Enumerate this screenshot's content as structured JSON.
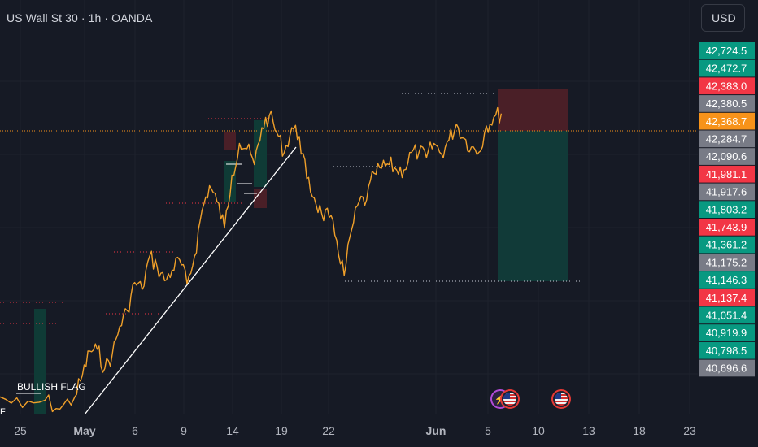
{
  "header": {
    "title": "US Wall St 30 · 1h · OANDA",
    "currency_label": "USD"
  },
  "colors": {
    "background": "#161a25",
    "candle": "#f0a02a",
    "grey_label": "#787b86",
    "green_label": "#089981",
    "red_label": "#f23645",
    "orange_label": "#f7931a",
    "trendline": "#ffffff",
    "stop_zone": "#4a1f27",
    "target_zone": "#113a38"
  },
  "chart_data": {
    "type": "line",
    "instrument": "US Wall St 30",
    "interval": "1h",
    "source": "OANDA",
    "ylim": [
      40650,
      42800
    ],
    "x_tick_labels": [
      "25",
      "May",
      "6",
      "9",
      "14",
      "19",
      "22",
      "Jun",
      "5",
      "10",
      "13",
      "18",
      "23"
    ],
    "price_labels": [
      {
        "value": "42,724.5",
        "color": "green"
      },
      {
        "value": "42,472.7",
        "color": "green"
      },
      {
        "value": "42,383.0",
        "color": "red"
      },
      {
        "value": "42,380.5",
        "color": "grey"
      },
      {
        "value": "42,368.7",
        "color": "orange"
      },
      {
        "value": "42,284.7",
        "color": "grey"
      },
      {
        "value": "42,090.6",
        "color": "grey"
      },
      {
        "value": "41,981.1",
        "color": "red"
      },
      {
        "value": "41,917.6",
        "color": "grey"
      },
      {
        "value": "41,803.2",
        "color": "green"
      },
      {
        "value": "41,743.9",
        "color": "red"
      },
      {
        "value": "41,361.2",
        "color": "green"
      },
      {
        "value": "41,175.2",
        "color": "grey"
      },
      {
        "value": "41,146.3",
        "color": "green"
      },
      {
        "value": "41,137.4",
        "color": "red"
      },
      {
        "value": "41,051.4",
        "color": "green"
      },
      {
        "value": "40,919.9",
        "color": "green"
      },
      {
        "value": "40,798.5",
        "color": "green"
      },
      {
        "value": "40,696.6",
        "color": "grey"
      }
    ],
    "price_path": [
      [
        0,
        40760
      ],
      [
        3,
        40700
      ],
      [
        6,
        40740
      ],
      [
        8,
        40690
      ],
      [
        10,
        40760
      ],
      [
        11,
        40880
      ],
      [
        12,
        41020
      ],
      [
        13,
        41030
      ],
      [
        14,
        40920
      ],
      [
        15,
        41000
      ],
      [
        16,
        41160
      ],
      [
        17,
        41250
      ],
      [
        18,
        41410
      ],
      [
        19,
        41370
      ],
      [
        20,
        41560
      ],
      [
        21,
        41500
      ],
      [
        22,
        41420
      ],
      [
        23,
        41480
      ],
      [
        24,
        41540
      ],
      [
        25,
        41400
      ],
      [
        26,
        41560
      ],
      [
        27,
        41820
      ],
      [
        28,
        41960
      ],
      [
        29,
        41870
      ],
      [
        30,
        41720
      ],
      [
        31,
        42020
      ],
      [
        32,
        42200
      ],
      [
        33,
        42170
      ],
      [
        34,
        42080
      ],
      [
        35,
        42290
      ],
      [
        36,
        42360
      ],
      [
        37,
        42260
      ],
      [
        38,
        42150
      ],
      [
        39,
        42290
      ],
      [
        40,
        42240
      ],
      [
        41,
        42000
      ],
      [
        42,
        41890
      ],
      [
        43,
        41800
      ],
      [
        44,
        41780
      ],
      [
        45,
        41650
      ],
      [
        46,
        41450
      ],
      [
        47,
        41710
      ],
      [
        48,
        41870
      ],
      [
        49,
        41880
      ],
      [
        50,
        42030
      ],
      [
        51,
        42060
      ],
      [
        52,
        42080
      ],
      [
        53,
        42050
      ],
      [
        54,
        42050
      ],
      [
        55,
        42150
      ],
      [
        56,
        42150
      ],
      [
        57,
        42120
      ],
      [
        58,
        42200
      ],
      [
        59,
        42140
      ],
      [
        60,
        42220
      ],
      [
        61,
        42310
      ],
      [
        62,
        42230
      ],
      [
        63,
        42180
      ],
      [
        64,
        42150
      ],
      [
        65,
        42300
      ],
      [
        66,
        42350
      ],
      [
        67,
        42370
      ]
    ],
    "markers": {
      "major_high": 42380.5,
      "major_low": 41176,
      "short_position": {
        "stop": 42383.0,
        "entry": 42368.7,
        "target": 41175.2
      }
    },
    "annotations": [
      "BULLISH FLAG",
      "F"
    ]
  }
}
